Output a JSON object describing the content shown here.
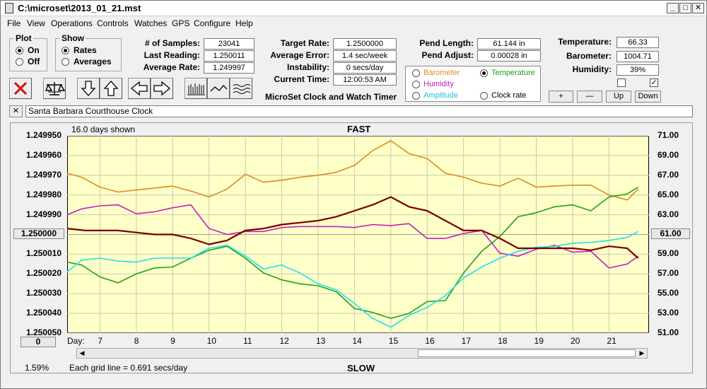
{
  "window": {
    "title": "C:\\microset\\2013_01_21.mst"
  },
  "menu": [
    "File",
    "View",
    "Operations",
    "Controls",
    "Watches",
    "GPS",
    "Configure",
    "Help"
  ],
  "plot_group": {
    "legend": "Plot",
    "options": [
      "On",
      "Off"
    ],
    "selected": "On"
  },
  "show_group": {
    "legend": "Show",
    "options": [
      "Rates",
      "Averages"
    ],
    "selected": "Rates"
  },
  "stats": {
    "samples_label": "# of Samples:",
    "samples": "23041",
    "last_reading_label": "Last Reading:",
    "last_reading": "1.250011",
    "average_rate_label": "Average Rate:",
    "average_rate": "1.249997",
    "target_rate_label": "Target Rate:",
    "target_rate": "1.2500000",
    "average_error_label": "Average Error:",
    "average_error": "1.4 sec/week",
    "instability_label": "Instability:",
    "instability": "0 secs/day",
    "current_time_label": "Current Time:",
    "current_time": "12:00:53 AM",
    "app_name": "MicroSet Clock and Watch Timer",
    "pend_length_label": "Pend Length:",
    "pend_length": "61.144 in",
    "pend_adjust_label": "Pend Adjust:",
    "pend_adjust": "0.00028 in"
  },
  "sensors": {
    "temperature_label": "Temperature:",
    "temperature": "66.33",
    "barometer_label": "Barometer:",
    "barometer": "1004.71",
    "humidity_label": "Humidity:",
    "humidity": "39%",
    "checkbox_1_checked": false,
    "checkbox_2_checked": true
  },
  "overlay_options": {
    "items": [
      "Barometer",
      "Temperature",
      "Humidity",
      "Clock rate",
      "Amplitude"
    ],
    "selected": "Temperature",
    "colors": {
      "Barometer": "#e08a1e",
      "Temperature": "#20a020",
      "Humidity": "#c020c0",
      "Amplitude": "#20c0e0",
      "Clock rate": "#000000"
    }
  },
  "adjust_buttons": [
    "+",
    "—",
    "Up",
    "Down"
  ],
  "toolbar_icons": [
    "close-icon",
    "balance-scale-icon",
    "arrow-down-icon",
    "arrow-up-icon",
    "arrow-left-icon",
    "arrow-right-icon",
    "bar-chart-icon",
    "line-chart-icon",
    "wave-chart-icon"
  ],
  "clock_name": "Santa Barbara Courthouse Clock",
  "chart_labels": {
    "days_shown": "16.0 days shown",
    "top": "FAST",
    "bottom": "SLOW",
    "grid_note": "Each grid line = 0.691 secs/day",
    "day_prefix": "Day:",
    "left_center_box": "1.250000",
    "right_center_box": "61.00",
    "bottom_left_box": "0",
    "percent": "1.59%"
  },
  "chart_data": {
    "type": "line",
    "background": "#ffffc8",
    "grid": true,
    "x_label": "Day",
    "x_ticks": [
      7,
      8,
      9,
      10,
      11,
      12,
      13,
      14,
      15,
      16,
      17,
      18,
      19,
      20,
      21
    ],
    "xlim": [
      6.1,
      22.1
    ],
    "y_left_ticks": [
      "1.249950",
      "1.249960",
      "1.249970",
      "1.249980",
      "1.249990",
      "1.250000",
      "1.250010",
      "1.250020",
      "1.250030",
      "1.250040",
      "1.250050"
    ],
    "y_left_lim": [
      1.24995,
      1.25005
    ],
    "y_left_inverted": true,
    "y_right_ticks": [
      "71.00",
      "69.00",
      "67.00",
      "65.00",
      "63.00",
      "61.00",
      "59.00",
      "57.00",
      "55.00",
      "53.00",
      "51.00"
    ],
    "y_right_lim": [
      51,
      71
    ],
    "series": [
      {
        "name": "Clock rate",
        "color": "#7a0000",
        "axis": "left",
        "x": [
          6.1,
          6.6,
          7,
          7.5,
          8,
          8.5,
          9,
          9.5,
          10,
          10.5,
          11,
          11.5,
          12,
          12.5,
          13,
          13.5,
          14,
          14.5,
          15,
          15.5,
          16,
          16.5,
          17,
          17.5,
          18,
          18.5,
          19,
          19.5,
          20,
          20.5,
          21,
          21.5,
          21.8
        ],
        "y": [
          1.249997,
          1.249998,
          1.249998,
          1.249998,
          1.249999,
          1.25,
          1.25,
          1.250002,
          1.250005,
          1.250003,
          1.249998,
          1.249997,
          1.249995,
          1.249994,
          1.249993,
          1.249991,
          1.249988,
          1.249985,
          1.249981,
          1.249986,
          1.249988,
          1.249993,
          1.249998,
          1.249998,
          1.250002,
          1.250007,
          1.250007,
          1.250007,
          1.250007,
          1.250008,
          1.250006,
          1.250007,
          1.250012
        ]
      },
      {
        "name": "Barometer",
        "color": "#e08a1e",
        "axis": "right",
        "x": [
          6.1,
          6.5,
          7,
          7.5,
          8,
          8.5,
          9,
          9.5,
          10,
          10.5,
          11,
          11.5,
          12,
          12.5,
          13,
          13.5,
          14,
          14.5,
          15,
          15.5,
          16,
          16.5,
          17,
          17.5,
          18,
          18.5,
          19,
          19.5,
          20,
          20.5,
          21,
          21.5,
          21.8
        ],
        "y": [
          67.2,
          66.8,
          65.8,
          65.3,
          65.5,
          65.7,
          65.9,
          65.4,
          64.8,
          65.6,
          67.1,
          66.3,
          66.5,
          66.8,
          67.0,
          67.3,
          68.0,
          69.5,
          70.5,
          69.2,
          68.7,
          67.2,
          66.8,
          66.2,
          65.9,
          66.7,
          65.8,
          65.9,
          66.0,
          66.0,
          65.0,
          64.5,
          65.6
        ]
      },
      {
        "name": "Temperature",
        "color": "#20a020",
        "axis": "right",
        "x": [
          6.1,
          6.5,
          7,
          7.5,
          8,
          8.5,
          9,
          9.5,
          10,
          10.5,
          11,
          11.5,
          12,
          12.5,
          13,
          13.5,
          14,
          14.5,
          15,
          15.5,
          16,
          16.5,
          17,
          17.5,
          18,
          18.5,
          19,
          19.5,
          20,
          20.5,
          21,
          21.5,
          21.8
        ],
        "y": [
          58.2,
          57.9,
          56.7,
          56.1,
          57.0,
          57.6,
          57.7,
          58.6,
          59.4,
          59.8,
          58.6,
          57.1,
          56.4,
          56.0,
          55.8,
          55.2,
          53.5,
          53.1,
          52.5,
          53.0,
          54.2,
          54.3,
          57.1,
          59.3,
          60.8,
          62.8,
          63.2,
          63.8,
          64.0,
          63.4,
          64.8,
          65.1,
          65.8
        ]
      },
      {
        "name": "Humidity",
        "color": "#c020c0",
        "axis": "right",
        "x": [
          6.1,
          6.5,
          7,
          7.5,
          8,
          8.5,
          9,
          9.5,
          10,
          10.5,
          11,
          11.5,
          12,
          12.5,
          13,
          13.5,
          14,
          14.5,
          15,
          15.5,
          16,
          16.5,
          17,
          17.5,
          18,
          18.5,
          19,
          19.5,
          20,
          20.5,
          21,
          21.5,
          21.8
        ],
        "y": [
          63.0,
          63.6,
          63.9,
          64.0,
          63.1,
          63.3,
          63.7,
          64.0,
          61.6,
          61.0,
          61.3,
          61.3,
          61.7,
          61.8,
          61.8,
          61.8,
          61.7,
          62.0,
          61.9,
          62.1,
          60.6,
          60.6,
          61.1,
          61.4,
          59.1,
          58.8,
          59.5,
          59.9,
          59.2,
          59.3,
          57.6,
          58.0,
          58.8
        ]
      },
      {
        "name": "Amplitude",
        "color": "#20e0f0",
        "axis": "right",
        "x": [
          6.1,
          6.5,
          7,
          7.5,
          8,
          8.5,
          9,
          9.5,
          10,
          10.5,
          11,
          11.5,
          12,
          12.5,
          13,
          13.5,
          14,
          14.5,
          15,
          15.5,
          16,
          16.5,
          17,
          17.5,
          18,
          18.5,
          19,
          19.5,
          20,
          20.5,
          21,
          21.5,
          21.8
        ],
        "y": [
          57.2,
          58.4,
          58.6,
          58.3,
          58.2,
          58.6,
          58.6,
          58.6,
          59.6,
          59.9,
          58.8,
          57.5,
          57.9,
          57.1,
          56.0,
          55.4,
          54.0,
          52.5,
          51.6,
          52.8,
          53.6,
          54.8,
          56.6,
          57.7,
          58.6,
          59.3,
          59.7,
          59.8,
          60.1,
          60.2,
          60.4,
          60.7,
          61.3
        ]
      }
    ]
  }
}
